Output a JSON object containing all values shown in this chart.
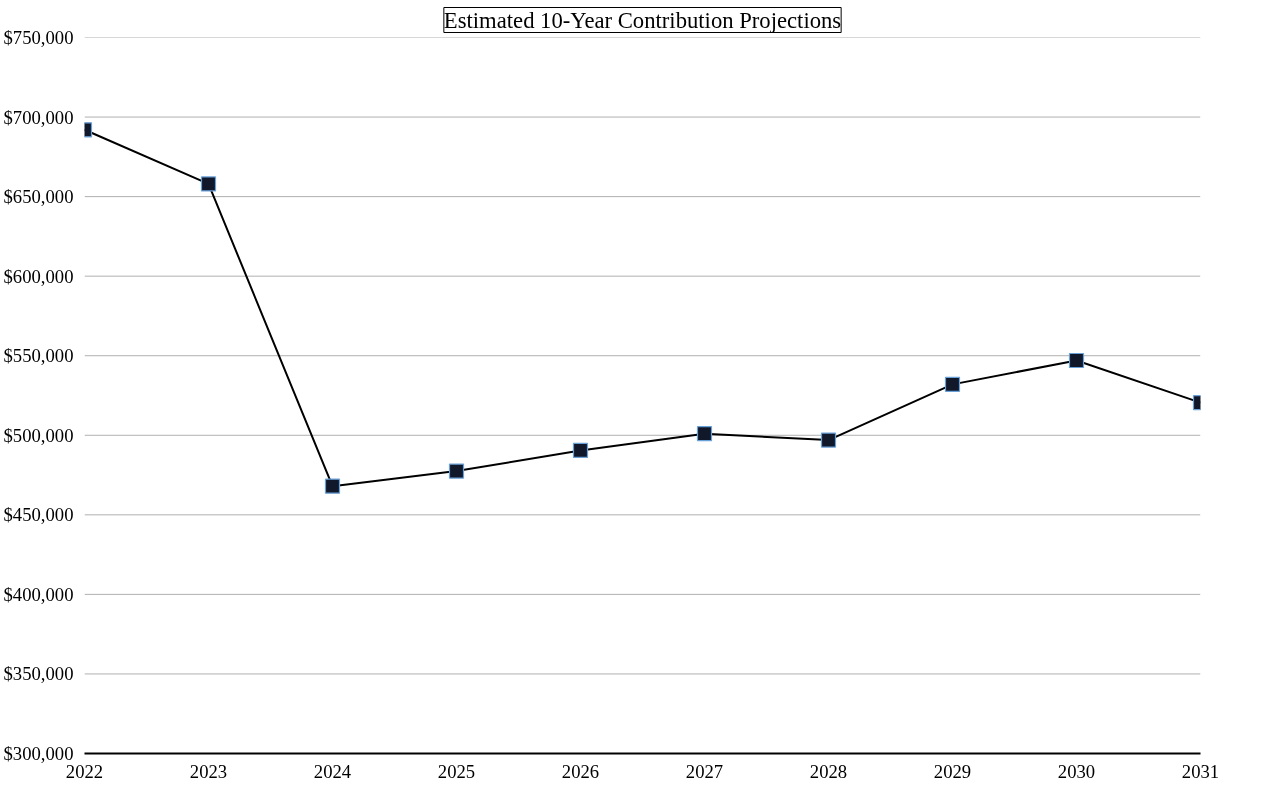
{
  "chart_data": {
    "type": "line",
    "title": "Estimated 10-Year Contribution Projections",
    "x": [
      2022,
      2023,
      2024,
      2025,
      2026,
      2027,
      2028,
      2029,
      2030,
      2031
    ],
    "series": [
      {
        "color": "#000000",
        "values": [
          692000,
          658000,
          468000,
          477500,
          490500,
          501000,
          497000,
          532000,
          547000,
          520500
        ]
      }
    ],
    "xlim": [
      2022,
      2031
    ],
    "xticks": [
      2022,
      2023,
      2024,
      2025,
      2026,
      2027,
      2028,
      2029,
      2030,
      2031
    ],
    "ylim": [
      300000,
      750000
    ],
    "yticks": [
      {
        "value": 300000,
        "label": "$300,000"
      },
      {
        "value": 350000,
        "label": "$350,000"
      },
      {
        "value": 400000,
        "label": "$400,000"
      },
      {
        "value": 450000,
        "label": "$450,000"
      },
      {
        "value": 500000,
        "label": "$500,000"
      },
      {
        "value": 550000,
        "label": "$550,000"
      },
      {
        "value": 600000,
        "label": "$600,000"
      },
      {
        "value": 650000,
        "label": "$650,000"
      },
      {
        "value": 700000,
        "label": "$700,000"
      },
      {
        "value": 750000,
        "label": "$750,000"
      }
    ],
    "grid": "y",
    "marker": "square",
    "line_style": "solid"
  }
}
